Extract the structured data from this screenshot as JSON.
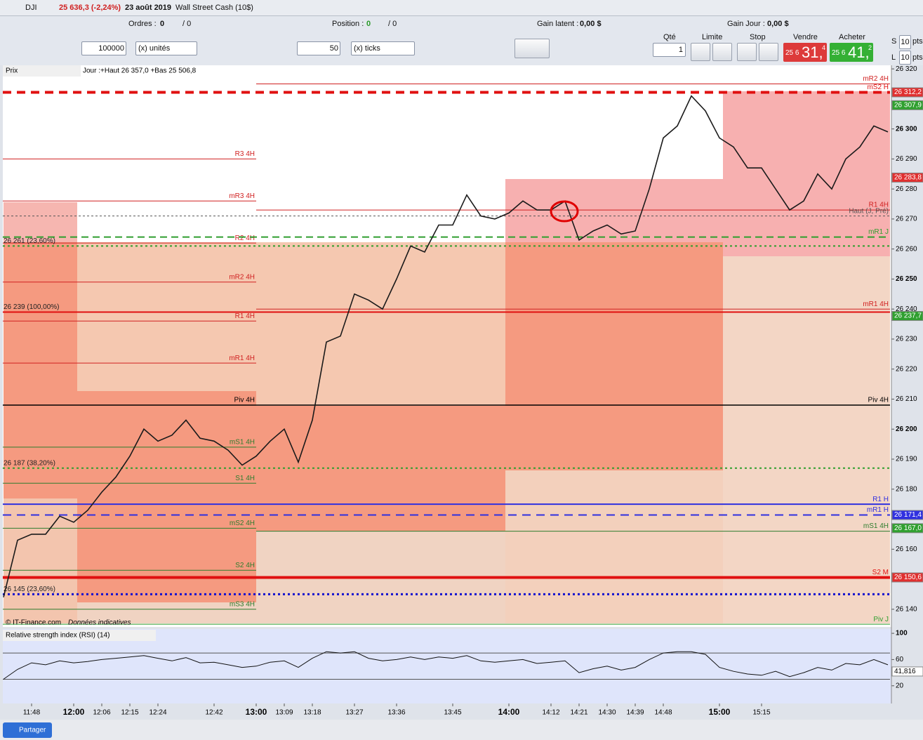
{
  "header": {
    "symbol": "DJI",
    "quote": "25 636,3 (-2,24%)",
    "date": "23 août 2019",
    "instrument": "Wall Street Cash (10$)"
  },
  "status": {
    "orders_label": "Ordres :",
    "orders_value": "0",
    "orders_total": "/ 0",
    "position_label": "Position :",
    "position_value": "0",
    "position_total": "/ 0",
    "latent_label": "Gain latent :",
    "latent_value": "0,00 $",
    "day_label": "Gain Jour :",
    "day_value": "0,00 $"
  },
  "controls": {
    "quantity": "100000",
    "quantity_unit": "(x) unités",
    "ticks": "50",
    "ticks_unit": "(x) ticks",
    "qty_label": "Qté",
    "qty_value": "1",
    "limit_label": "Limite",
    "stop_label": "Stop",
    "sell_label": "Vendre",
    "sell_prefix": "25 6",
    "sell_big": "31,",
    "sell_small": "4",
    "buy_label": "Acheter",
    "buy_prefix": "25 6",
    "buy_big": "41,",
    "buy_small": "2",
    "s_label": "S",
    "s_value": "10",
    "s_unit": "pts",
    "l_label": "L",
    "l_value": "10",
    "l_unit": "pts"
  },
  "footer": {
    "share": "Partager"
  },
  "chart_data": [
    {
      "type": "line",
      "title": "Prix",
      "subtitle": "Jour :+Haut 26 357,0 +Bas 25 506,8",
      "source": "© IT-Finance.com",
      "note": "Données indicatives",
      "x": [
        "11:44",
        "11:46",
        "11:48",
        "11:52",
        "11:56",
        "12:00",
        "12:03",
        "12:06",
        "12:10",
        "12:15",
        "12:19",
        "12:24",
        "12:28",
        "12:33",
        "12:37",
        "12:42",
        "12:48",
        "12:54",
        "13:00",
        "13:04",
        "13:09",
        "13:13",
        "13:18",
        "13:21",
        "13:24",
        "13:27",
        "13:30",
        "13:33",
        "13:36",
        "13:38",
        "13:40",
        "13:42",
        "13:45",
        "13:49",
        "13:52",
        "13:56",
        "14:00",
        "14:04",
        "14:08",
        "14:12",
        "14:16",
        "14:21",
        "14:25",
        "14:30",
        "14:34",
        "14:39",
        "14:43",
        "14:48",
        "14:51",
        "14:54",
        "14:57",
        "15:00",
        "15:05",
        "15:10",
        "15:15",
        "15:18",
        "15:21",
        "15:24",
        "15:27",
        "15:30",
        "15:33",
        "15:36",
        "15:39",
        "15:42"
      ],
      "series": [
        {
          "color": "#1a1a1a",
          "values": [
            26144,
            26163,
            26165,
            26165,
            26171,
            26169,
            26173,
            26179,
            26184,
            26191,
            26200,
            26196,
            26198,
            26203,
            26197,
            26196,
            26193,
            26188,
            26191,
            26196,
            26200,
            26189,
            26203,
            26229,
            26231,
            26245,
            26243,
            26240,
            26250,
            26261,
            26259,
            26268,
            26268,
            26278,
            26271,
            26270,
            26272,
            26276,
            26273,
            26273,
            26276,
            26263,
            26266,
            26268,
            26265,
            26266,
            26280,
            26297,
            26301,
            26311,
            26306,
            26297,
            26294,
            26287,
            26287,
            26280,
            26273,
            26276,
            26285,
            26280,
            26290,
            26294,
            26301,
            26299
          ]
        }
      ],
      "xticks": [
        "11:48",
        "12:00",
        "12:06",
        "12:15",
        "12:24",
        "12:42",
        "13:00",
        "13:09",
        "13:18",
        "13:27",
        "13:36",
        "13:45",
        "14:00",
        "14:12",
        "14:21",
        "14:30",
        "14:39",
        "14:48",
        "15:00",
        "15:15"
      ],
      "ylim": [
        26134.1,
        26321.2
      ],
      "yticks": [
        {
          "value": 26320,
          "label": "26 320"
        },
        {
          "value": 26300,
          "label": "26 300"
        },
        {
          "value": 26290,
          "label": "26 290"
        },
        {
          "value": 26280,
          "label": "26 280"
        },
        {
          "value": 26270,
          "label": "26 270"
        },
        {
          "value": 26260,
          "label": "26 260"
        },
        {
          "value": 26250,
          "label": "26 250"
        },
        {
          "value": 26240,
          "label": "26 240"
        },
        {
          "value": 26230,
          "label": "26 230"
        },
        {
          "value": 26220,
          "label": "26 220"
        },
        {
          "value": 26210,
          "label": "26 210"
        },
        {
          "value": 26200,
          "label": "26 200"
        },
        {
          "value": 26190,
          "label": "26 190"
        },
        {
          "value": 26180,
          "label": "26 180"
        },
        {
          "value": 26160,
          "label": "26 160"
        },
        {
          "value": 26140,
          "label": "26 140"
        }
      ],
      "levels": [
        {
          "label": "R3 4H",
          "value": 26290,
          "color": "#d02020",
          "dash": "",
          "width": 1,
          "from": null,
          "to": "13:00",
          "side": "right"
        },
        {
          "label": "mR3 4H",
          "value": 26276,
          "color": "#d02020",
          "dash": "",
          "width": 1,
          "from": null,
          "to": "13:00",
          "side": "right"
        },
        {
          "label": "R2 4H",
          "value": 26262,
          "color": "#d02020",
          "dash": "",
          "width": 1,
          "from": null,
          "to": "13:00",
          "side": "right"
        },
        {
          "label": "mR2 4H",
          "value": 26249,
          "color": "#d02020",
          "dash": "",
          "width": 1,
          "from": null,
          "to": "13:00",
          "side": "right"
        },
        {
          "label": "R1 4H",
          "value": 26236,
          "color": "#d02020",
          "dash": "",
          "width": 1,
          "from": null,
          "to": "13:00",
          "side": "right"
        },
        {
          "label": "mR1 4H",
          "value": 26222,
          "color": "#d02020",
          "dash": "",
          "width": 1,
          "from": null,
          "to": "13:00",
          "side": "right"
        },
        {
          "label": "Piv 4H",
          "value": 26208,
          "color": "#000000",
          "dash": "",
          "width": 1.5,
          "from": null,
          "to": "13:00",
          "side": "right"
        },
        {
          "label": "mS1 4H",
          "value": 26194,
          "color": "#2e7d2e",
          "dash": "",
          "width": 1,
          "from": null,
          "to": "13:00",
          "side": "right"
        },
        {
          "label": "S1 4H",
          "value": 26182,
          "color": "#2e7d2e",
          "dash": "",
          "width": 1,
          "from": null,
          "to": "13:00",
          "side": "right"
        },
        {
          "label": "mS2 4H",
          "value": 26167,
          "color": "#2e7d2e",
          "dash": "",
          "width": 1,
          "from": null,
          "to": "13:00",
          "side": "right"
        },
        {
          "label": "S2 4H",
          "value": 26153,
          "color": "#2e7d2e",
          "dash": "",
          "width": 1,
          "from": null,
          "to": "13:00",
          "side": "right"
        },
        {
          "label": "mS3 4H",
          "value": 26140,
          "color": "#2e7d2e",
          "dash": "",
          "width": 1,
          "from": null,
          "to": "13:00",
          "side": "right"
        },
        {
          "label": "mR2 4H",
          "value": 26315,
          "color": "#d02020",
          "dash": "",
          "width": 1,
          "from": "13:00",
          "to": null,
          "side": "right"
        },
        {
          "label": "R1 4H",
          "value": 26273,
          "color": "#d02020",
          "dash": "",
          "width": 1,
          "from": "13:00",
          "to": null,
          "side": "right"
        },
        {
          "label": "mR1 4H",
          "value": 26240,
          "color": "#d02020",
          "dash": "",
          "width": 1,
          "from": "13:00",
          "to": null,
          "side": "right"
        },
        {
          "label": "Piv 4H",
          "value": 26208,
          "color": "#000000",
          "dash": "",
          "width": 1.5,
          "from": "13:00",
          "to": null,
          "side": "right"
        },
        {
          "label": "mS1 4H",
          "value": 26166,
          "color": "#2e7d2e",
          "dash": "",
          "width": 1,
          "from": "13:00",
          "to": null,
          "side": "right"
        },
        {
          "label": "mS2 H",
          "value": 26312.2,
          "color": "#e01010",
          "dash": "12 8",
          "width": 4,
          "from": null,
          "to": null,
          "side": "right"
        },
        {
          "label": "Haut (J, Pré)",
          "value": 26271,
          "color": "#555555",
          "dash": "3 3",
          "width": 1,
          "from": null,
          "to": null,
          "side": "right"
        },
        {
          "label": "mR1 J",
          "value": 26264,
          "color": "#2e9e2e",
          "dash": "10 6",
          "width": 2,
          "from": null,
          "to": null,
          "side": "right"
        },
        {
          "label": "26 261 (23,60%)",
          "value": 26261,
          "color": "#2e9e2e",
          "dash": "3 4",
          "width": 2,
          "from": null,
          "to": null,
          "side": "left"
        },
        {
          "label": "26 239 (100,00%)",
          "value": 26239,
          "color": "#e01010",
          "dash": "",
          "width": 2,
          "from": null,
          "to": null,
          "side": "left"
        },
        {
          "label": "26 187 (38,20%)",
          "value": 26187,
          "color": "#2e9e2e",
          "dash": "3 4",
          "width": 2,
          "from": null,
          "to": null,
          "side": "left"
        },
        {
          "label": "R1 H",
          "value": 26175,
          "color": "#3030e0",
          "dash": "",
          "width": 2,
          "from": null,
          "to": null,
          "side": "right"
        },
        {
          "label": "mR1 H",
          "value": 26171.4,
          "color": "#3030e0",
          "dash": "12 8",
          "width": 2,
          "from": null,
          "to": null,
          "side": "right"
        },
        {
          "label": "S2 M",
          "value": 26150.6,
          "color": "#e01010",
          "dash": "",
          "width": 4,
          "from": null,
          "to": null,
          "side": "right"
        },
        {
          "label": "26 145 (23,60%)",
          "value": 26145,
          "color": "#1010d0",
          "dash": "3 4",
          "width": 3,
          "from": null,
          "to": null,
          "side": "left"
        },
        {
          "label": "Piv J",
          "value": 26135,
          "color": "#2e9e2e",
          "dash": "",
          "width": 1,
          "from": null,
          "to": null,
          "side": "right"
        }
      ],
      "axis_tags": [
        {
          "value": 26312.2,
          "label": "26 312,2",
          "color": "#e03030"
        },
        {
          "value": 26307.9,
          "label": "26 307,9",
          "color": "#30a030"
        },
        {
          "value": 26283.8,
          "label": "26 283,8",
          "color": "#e03030"
        },
        {
          "value": 26237.7,
          "label": "26 237,7",
          "color": "#30a030"
        },
        {
          "value": 26171.4,
          "label": "26 171,4",
          "color": "#3030e0"
        },
        {
          "value": 26167,
          "label": "26 167,0",
          "color": "#30a030"
        },
        {
          "value": 26150.6,
          "label": "26 150,6",
          "color": "#e03030"
        }
      ]
    },
    {
      "type": "line",
      "title": "Relative strength index (RSI) (14)",
      "series": [
        {
          "color": "#111111",
          "values": [
            30,
            45,
            55,
            52,
            58,
            55,
            57,
            60,
            62,
            64,
            66,
            62,
            58,
            63,
            55,
            56,
            52,
            48,
            50,
            56,
            58,
            48,
            62,
            72,
            70,
            72,
            62,
            58,
            60,
            64,
            60,
            64,
            62,
            66,
            58,
            56,
            58,
            60,
            54,
            56,
            58,
            40,
            46,
            50,
            44,
            48,
            60,
            70,
            72,
            72,
            68,
            48,
            42,
            38,
            36,
            42,
            34,
            40,
            48,
            44,
            54,
            52,
            60,
            52
          ]
        }
      ],
      "ylim": [
        -7,
        106.5
      ],
      "yticks": [
        100,
        60,
        20
      ],
      "levels": [
        70,
        30
      ],
      "axis_tags": [
        {
          "value": 41.816,
          "label": "41,816",
          "color": "#ffffff"
        }
      ]
    }
  ]
}
